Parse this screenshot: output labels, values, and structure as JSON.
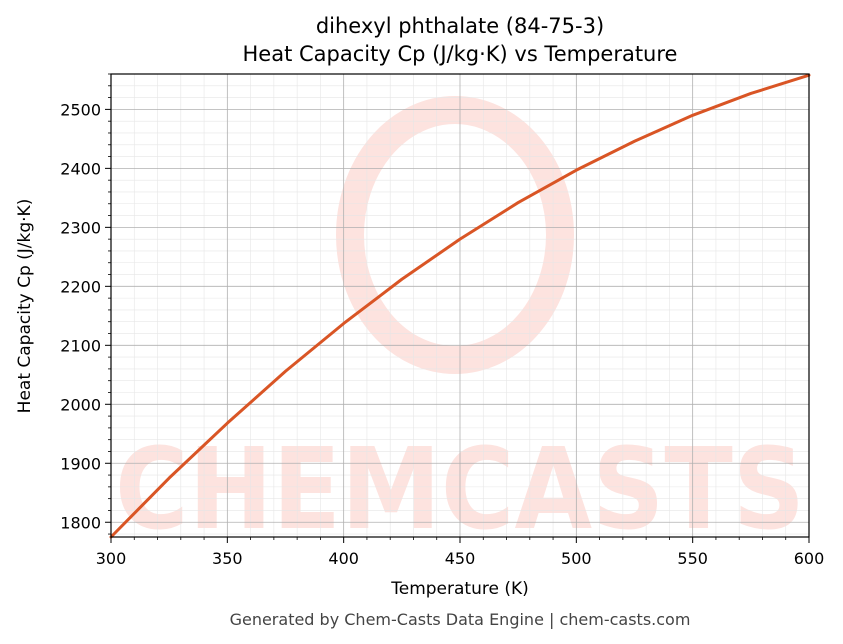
{
  "chart_data": {
    "type": "line",
    "title": "dihexyl phthalate (84-75-3)",
    "subtitle": "Heat Capacity Cp (J/kg·K) vs Temperature",
    "xlabel": "Temperature (K)",
    "ylabel": "Heat Capacity Cp (J/kg·K)",
    "xlim": [
      300,
      600
    ],
    "ylim": [
      1775,
      2560
    ],
    "x_ticks": [
      300,
      350,
      400,
      450,
      500,
      550,
      600
    ],
    "y_ticks": [
      1800,
      1900,
      2000,
      2100,
      2200,
      2300,
      2400,
      2500
    ],
    "grid": true,
    "series": [
      {
        "color": "#d95525",
        "x": [
          300,
          325,
          350,
          375,
          400,
          425,
          450,
          475,
          500,
          525,
          550,
          575,
          600
        ],
        "y": [
          1775,
          1875,
          1968,
          2056,
          2137,
          2212,
          2280,
          2342,
          2397,
          2446,
          2490,
          2527,
          2558
        ]
      }
    ]
  },
  "watermark": {
    "text": "CHEMCASTS",
    "color": "#fde3df"
  },
  "footer": {
    "text": "Generated by Chem-Casts Data Engine | chem-casts.com"
  }
}
